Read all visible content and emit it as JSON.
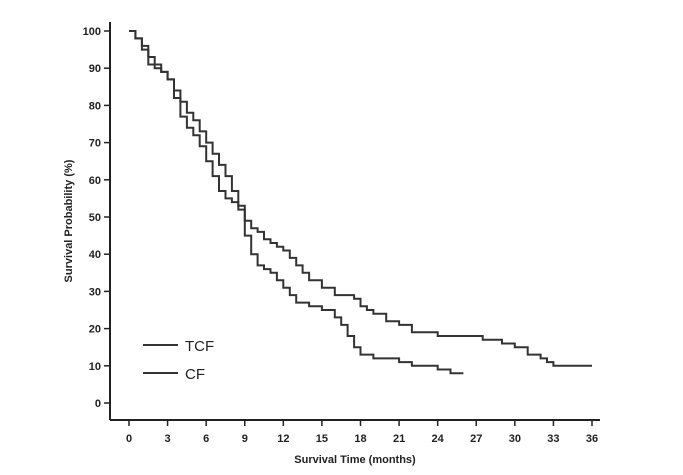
{
  "chart_data": {
    "type": "line",
    "xlabel": "Survival Time (months)",
    "ylabel": "Survival Probability (%)",
    "xlim": [
      0,
      36
    ],
    "ylim": [
      0,
      100
    ],
    "x_ticks": [
      "0",
      "3",
      "6",
      "9",
      "12",
      "15",
      "18",
      "21",
      "24",
      "27",
      "30",
      "33",
      "36"
    ],
    "y_ticks": [
      "0",
      "10",
      "20",
      "30",
      "40",
      "50",
      "60",
      "70",
      "80",
      "90",
      "100"
    ],
    "grid": false,
    "legend_position": "bottom-left",
    "line_color": "#333333",
    "series": [
      {
        "name": "TCF",
        "x": [
          0,
          0.5,
          1.0,
          1.5,
          2.0,
          2.5,
          3.0,
          3.5,
          4.0,
          4.5,
          5.0,
          5.5,
          6.0,
          6.5,
          7.0,
          7.5,
          8.0,
          8.5,
          9.0,
          9.5,
          10.0,
          10.5,
          11.0,
          11.5,
          12.0,
          12.5,
          13.0,
          13.5,
          14.0,
          15.0,
          16.0,
          17.0,
          17.5,
          18.0,
          18.5,
          19.0,
          20.0,
          21.0,
          22.0,
          24.0,
          26.0,
          27.5,
          29.0,
          30.0,
          30.5,
          31.0,
          32.0,
          32.5,
          33.0,
          34.5,
          36.0
        ],
        "y": [
          100,
          98,
          96,
          93,
          91,
          89,
          87,
          84,
          81,
          78,
          76,
          73,
          70,
          67,
          64,
          61,
          57,
          53,
          49,
          47,
          46,
          44,
          43,
          42,
          41,
          39,
          37,
          35,
          33,
          31,
          29,
          29,
          28,
          26,
          25,
          24,
          22,
          21,
          19,
          18,
          18,
          17,
          16,
          15,
          15,
          13,
          12,
          11,
          10,
          10,
          10
        ]
      },
      {
        "name": "CF",
        "x": [
          0,
          0.5,
          1.0,
          1.5,
          2.0,
          2.5,
          3.0,
          3.5,
          4.0,
          4.5,
          5.0,
          5.5,
          6.0,
          6.5,
          7.0,
          7.5,
          8.0,
          8.5,
          9.0,
          9.5,
          10.0,
          10.5,
          11.0,
          11.5,
          12.0,
          12.5,
          13.0,
          14.0,
          15.0,
          16.0,
          16.5,
          17.0,
          17.5,
          18.0,
          19.0,
          20.0,
          21.0,
          22.0,
          23.0,
          24.0,
          25.0,
          26.0
        ],
        "y": [
          100,
          98,
          95,
          91,
          90,
          89,
          87,
          82,
          77,
          74,
          72,
          69,
          65,
          61,
          57,
          55,
          54,
          52,
          45,
          40,
          37,
          36,
          35,
          33,
          31,
          29,
          27,
          26,
          25,
          23,
          21,
          18,
          15,
          13,
          12,
          12,
          11,
          10,
          10,
          9,
          8,
          8
        ]
      }
    ]
  }
}
